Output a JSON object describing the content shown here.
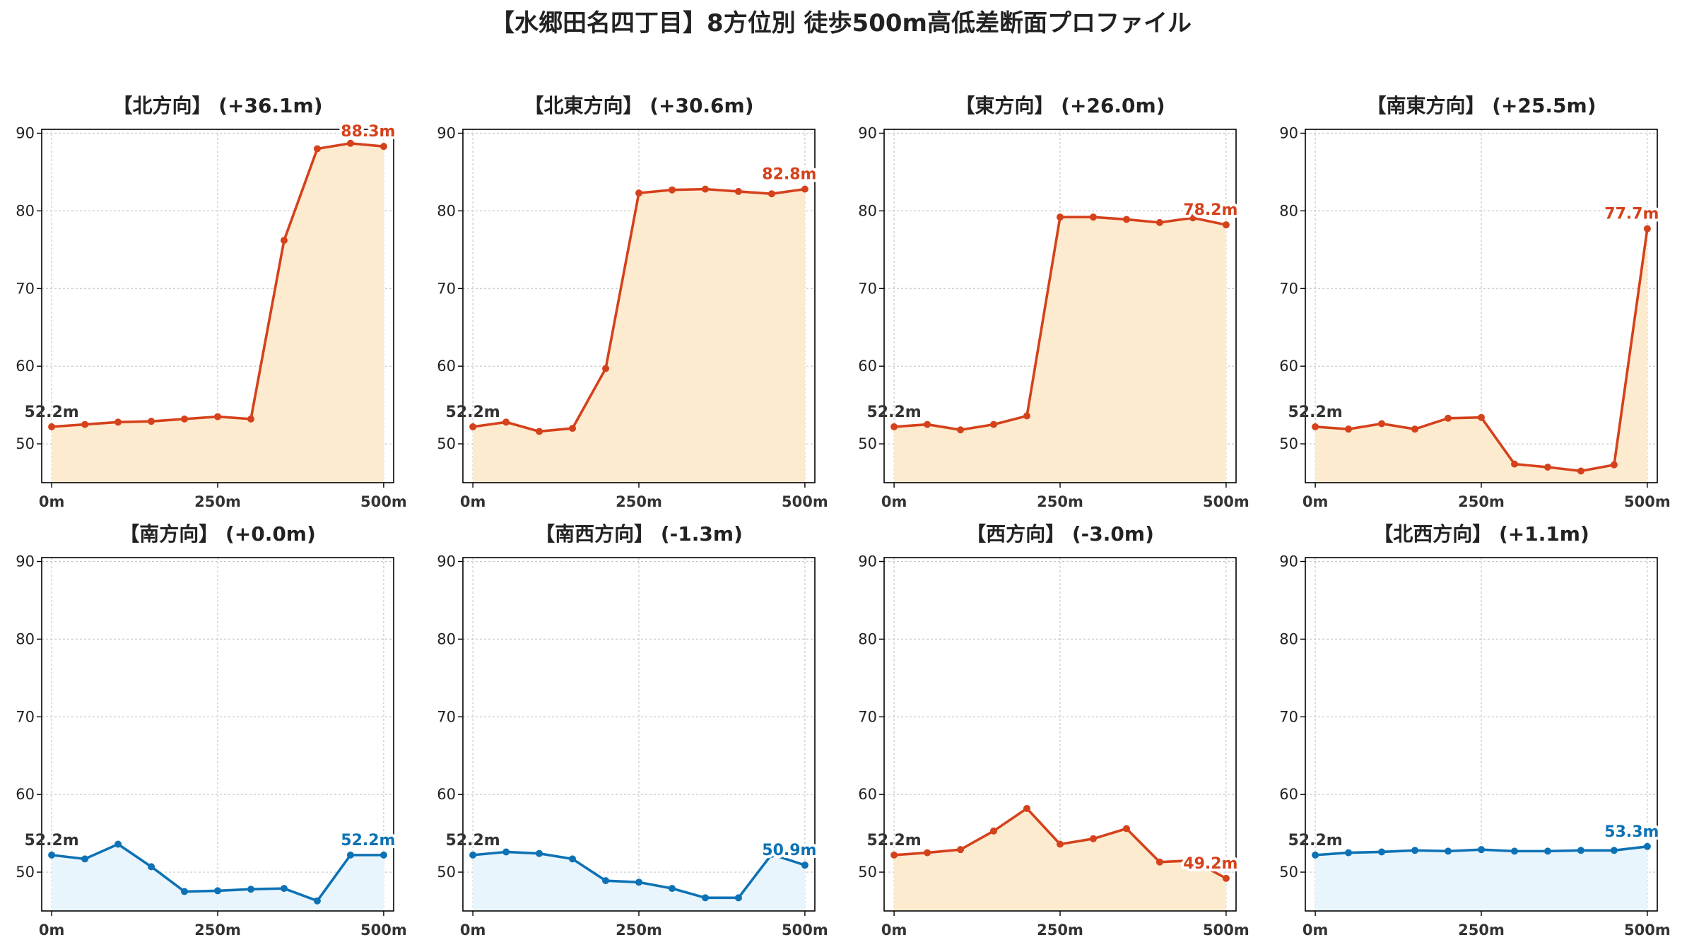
{
  "chart_data": {
    "type": "line",
    "title": "【水郷田名四丁目】8方位別 徒歩500m高低差断面プロファイル",
    "ylim": [
      45,
      90.5
    ],
    "xlim": [
      -15,
      515
    ],
    "yticks": [
      50,
      60,
      70,
      80,
      90
    ],
    "xticks": [
      0,
      250,
      500
    ],
    "xtick_labels": [
      "0m",
      "250m",
      "500m"
    ],
    "grid": true,
    "colors": {
      "up_line": "#d5411b",
      "up_fill": "#fdebd0",
      "down_line": "#0d72b5",
      "down_fill": "#e9f5fc",
      "start_label": "#333333"
    },
    "x": [
      0,
      50,
      100,
      150,
      200,
      250,
      300,
      350,
      400,
      450,
      500
    ],
    "panels": [
      {
        "title": "【北方向】 (+36.1m)",
        "trend": "up",
        "start_label": "52.2m",
        "end_label": "88.3m",
        "values": [
          52.2,
          52.5,
          52.8,
          52.9,
          53.2,
          53.5,
          53.2,
          76.2,
          88.0,
          88.7,
          88.3
        ]
      },
      {
        "title": "【北東方向】 (+30.6m)",
        "trend": "up",
        "start_label": "52.2m",
        "end_label": "82.8m",
        "values": [
          52.2,
          52.8,
          51.6,
          52.0,
          59.7,
          82.3,
          82.7,
          82.8,
          82.5,
          82.2,
          82.8
        ]
      },
      {
        "title": "【東方向】 (+26.0m)",
        "trend": "up",
        "start_label": "52.2m",
        "end_label": "78.2m",
        "values": [
          52.2,
          52.5,
          51.8,
          52.5,
          53.6,
          79.2,
          79.2,
          78.9,
          78.5,
          79.1,
          78.2
        ]
      },
      {
        "title": "【南東方向】 (+25.5m)",
        "trend": "up",
        "start_label": "52.2m",
        "end_label": "77.7m",
        "values": [
          52.2,
          51.9,
          52.6,
          51.9,
          53.3,
          53.4,
          47.4,
          47.0,
          46.5,
          47.3,
          77.7
        ]
      },
      {
        "title": "【南方向】 (+0.0m)",
        "trend": "down",
        "start_label": "52.2m",
        "end_label": "52.2m",
        "values": [
          52.2,
          51.7,
          53.6,
          50.7,
          47.5,
          47.6,
          47.8,
          47.9,
          46.3,
          52.2,
          52.2
        ]
      },
      {
        "title": "【南西方向】 (-1.3m)",
        "trend": "down",
        "start_label": "52.2m",
        "end_label": "50.9m",
        "values": [
          52.2,
          52.6,
          52.4,
          51.7,
          48.9,
          48.7,
          47.9,
          46.7,
          46.7,
          52.3,
          50.9
        ]
      },
      {
        "title": "【西方向】 (-3.0m)",
        "trend": "up",
        "start_label": "52.2m",
        "end_label": "49.2m",
        "values": [
          52.2,
          52.5,
          52.9,
          55.3,
          58.2,
          53.6,
          54.3,
          55.6,
          51.3,
          51.5,
          49.2
        ]
      },
      {
        "title": "【北西方向】 (+1.1m)",
        "trend": "down",
        "start_label": "52.2m",
        "end_label": "53.3m",
        "values": [
          52.2,
          52.5,
          52.6,
          52.8,
          52.7,
          52.9,
          52.7,
          52.7,
          52.8,
          52.8,
          53.3
        ]
      }
    ]
  }
}
